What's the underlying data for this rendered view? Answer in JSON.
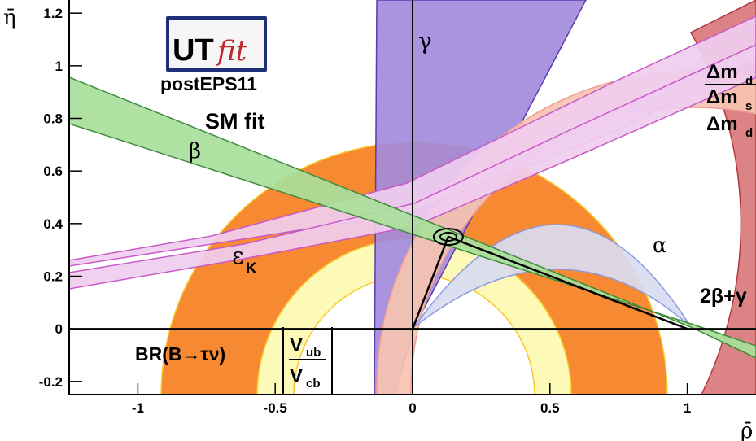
{
  "chart_data": {
    "type": "area",
    "xlabel": "ρ̄",
    "ylabel": "η̄",
    "xlim": [
      -1.25,
      1.25
    ],
    "ylim": [
      -0.25,
      1.25
    ],
    "x_ticks": [
      -1,
      -0.5,
      0,
      0.5,
      1
    ],
    "x_tick_labels": [
      "-1",
      "-0.5",
      "0",
      "0.5",
      "1"
    ],
    "y_ticks": [
      -0.2,
      0,
      0.2,
      0.4,
      0.6,
      0.8,
      1,
      1.2
    ],
    "y_tick_labels": [
      "-0.2",
      "0",
      "0.2",
      "0.4",
      "0.6",
      "0.8",
      "1",
      "1.2"
    ],
    "grid": false,
    "apex": {
      "rho": 0.13,
      "eta": 0.35
    },
    "logo": {
      "brand_main": "UT",
      "brand_sub": "fit",
      "tag": "postEPS11"
    },
    "annotations": {
      "sm_fit": "SM fit",
      "gamma": "γ",
      "beta": "β",
      "alpha": "α",
      "epsilon_K": "ε",
      "epsilon_K_sub": "K",
      "two_beta_gamma": "2β+γ",
      "br_tau_nu": "BR(B→τν)",
      "vub": "V",
      "vub_sub": "ub",
      "vcb": "V",
      "vcb_sub": "cb",
      "dmd_ratio_num": "Δm",
      "dmd_ratio_num_sub": "d",
      "dmd_ratio_den": "Δm",
      "dmd_ratio_den_sub": "s",
      "dmd": "Δm",
      "dmd_sub": "d"
    },
    "colors": {
      "vub_vcb": "#f57f20",
      "vub_vcb_inner": "#fdfab2",
      "vub_vcb_inner_line": "#f9c928",
      "gamma": "#a38bdd",
      "gamma_line": "#5a3cab",
      "beta": "#a8e09a",
      "beta_line": "#3e8a3e",
      "epsilon_K": "#f0cdef",
      "epsilon_K_line": "#c85ac8",
      "dmd": "#d9787c",
      "dms_ratio": "#f6c3b1",
      "dms_ratio_line": "#f29b93",
      "alpha": "#d8dcf0",
      "alpha_line": "#8c9ae0",
      "dmd_circle_line": "#b53a3a"
    }
  }
}
